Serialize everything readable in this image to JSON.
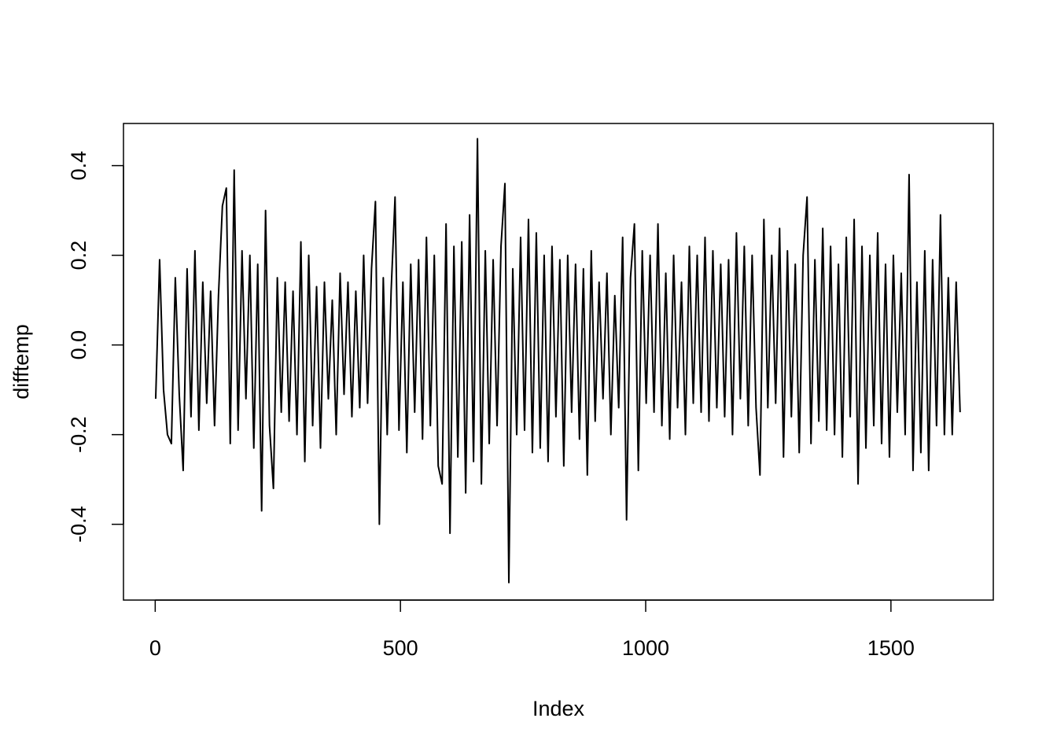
{
  "chart_data": {
    "type": "line",
    "xlabel": "Index",
    "ylabel": "difftemp",
    "x": [
      1,
      9,
      17,
      25,
      33,
      41,
      49,
      57,
      65,
      73,
      81,
      89,
      97,
      105,
      113,
      121,
      129,
      137,
      145,
      153,
      161,
      169,
      177,
      185,
      193,
      201,
      209,
      217,
      225,
      233,
      241,
      249,
      257,
      265,
      273,
      281,
      289,
      297,
      305,
      313,
      321,
      329,
      337,
      345,
      353,
      361,
      369,
      377,
      385,
      393,
      401,
      409,
      417,
      425,
      433,
      441,
      449,
      457,
      465,
      473,
      481,
      489,
      497,
      505,
      513,
      521,
      529,
      537,
      545,
      553,
      561,
      569,
      577,
      585,
      593,
      601,
      609,
      617,
      625,
      633,
      641,
      649,
      657,
      665,
      673,
      681,
      689,
      697,
      705,
      713,
      721,
      729,
      737,
      745,
      753,
      761,
      769,
      777,
      785,
      793,
      801,
      809,
      817,
      825,
      833,
      841,
      849,
      857,
      865,
      873,
      881,
      889,
      897,
      905,
      913,
      921,
      929,
      937,
      945,
      953,
      961,
      969,
      977,
      985,
      993,
      1001,
      1009,
      1017,
      1025,
      1033,
      1041,
      1049,
      1057,
      1065,
      1073,
      1081,
      1089,
      1097,
      1105,
      1113,
      1121,
      1129,
      1137,
      1145,
      1153,
      1161,
      1169,
      1177,
      1185,
      1193,
      1201,
      1209,
      1217,
      1225,
      1233,
      1241,
      1249,
      1257,
      1265,
      1273,
      1281,
      1289,
      1297,
      1305,
      1313,
      1321,
      1329,
      1337,
      1345,
      1353,
      1361,
      1369,
      1377,
      1385,
      1393,
      1401,
      1409,
      1417,
      1425,
      1433,
      1441,
      1449,
      1457,
      1465,
      1473,
      1481,
      1489,
      1497,
      1505,
      1513,
      1521,
      1529,
      1537,
      1545,
      1553,
      1561,
      1569,
      1577,
      1585,
      1593,
      1601,
      1609,
      1617,
      1625,
      1633,
      1641
    ],
    "series": [
      {
        "color": "#000000",
        "values": [
          -0.12,
          0.19,
          -0.1,
          -0.2,
          -0.22,
          0.15,
          -0.11,
          -0.28,
          0.17,
          -0.16,
          0.21,
          -0.19,
          0.14,
          -0.13,
          0.12,
          -0.18,
          0.11,
          0.31,
          0.35,
          -0.22,
          0.39,
          -0.19,
          0.21,
          -0.12,
          0.2,
          -0.23,
          0.18,
          -0.37,
          0.3,
          -0.18,
          -0.32,
          0.15,
          -0.15,
          0.14,
          -0.17,
          0.12,
          -0.2,
          0.23,
          -0.26,
          0.2,
          -0.18,
          0.13,
          -0.23,
          0.14,
          -0.12,
          0.1,
          -0.2,
          0.16,
          -0.11,
          0.14,
          -0.16,
          0.12,
          -0.14,
          0.2,
          -0.13,
          0.17,
          0.32,
          -0.4,
          0.15,
          -0.2,
          0.12,
          0.33,
          -0.19,
          0.14,
          -0.24,
          0.18,
          -0.15,
          0.19,
          -0.21,
          0.24,
          -0.18,
          0.2,
          -0.27,
          -0.31,
          0.27,
          -0.42,
          0.22,
          -0.25,
          0.23,
          -0.33,
          0.29,
          -0.26,
          0.46,
          -0.31,
          0.21,
          -0.22,
          0.19,
          -0.18,
          0.22,
          0.36,
          -0.53,
          0.17,
          -0.2,
          0.24,
          -0.19,
          0.28,
          -0.24,
          0.25,
          -0.23,
          0.2,
          -0.26,
          0.22,
          -0.16,
          0.19,
          -0.27,
          0.2,
          -0.15,
          0.18,
          -0.21,
          0.17,
          -0.29,
          0.21,
          -0.17,
          0.14,
          -0.12,
          0.16,
          -0.2,
          0.11,
          -0.14,
          0.24,
          -0.39,
          0.15,
          0.27,
          -0.28,
          0.21,
          -0.13,
          0.2,
          -0.15,
          0.27,
          -0.18,
          0.16,
          -0.21,
          0.2,
          -0.14,
          0.14,
          -0.2,
          0.22,
          -0.13,
          0.2,
          -0.15,
          0.24,
          -0.17,
          0.21,
          -0.14,
          0.18,
          -0.16,
          0.19,
          -0.2,
          0.25,
          -0.12,
          0.22,
          -0.18,
          0.2,
          -0.14,
          -0.29,
          0.28,
          -0.14,
          0.2,
          -0.13,
          0.26,
          -0.25,
          0.21,
          -0.16,
          0.18,
          -0.24,
          0.2,
          0.33,
          -0.22,
          0.19,
          -0.17,
          0.26,
          -0.19,
          0.22,
          -0.2,
          0.18,
          -0.25,
          0.24,
          -0.16,
          0.28,
          -0.31,
          0.22,
          -0.23,
          0.2,
          -0.18,
          0.25,
          -0.22,
          0.18,
          -0.25,
          0.2,
          -0.15,
          0.16,
          -0.2,
          0.38,
          -0.28,
          0.14,
          -0.24,
          0.21,
          -0.28,
          0.19,
          -0.18,
          0.29,
          -0.2,
          0.15,
          -0.2,
          0.14,
          -0.15
        ]
      }
    ],
    "xlim": [
      -64.7,
      1708.7
    ],
    "ylim": [
      -0.569,
      0.494
    ],
    "xticks": [
      0,
      500,
      1000,
      1500
    ],
    "yticks": [
      -0.4,
      -0.2,
      {
        "value": 0,
        "label": "0.0"
      },
      0.2,
      0.4
    ],
    "grid": false
  }
}
